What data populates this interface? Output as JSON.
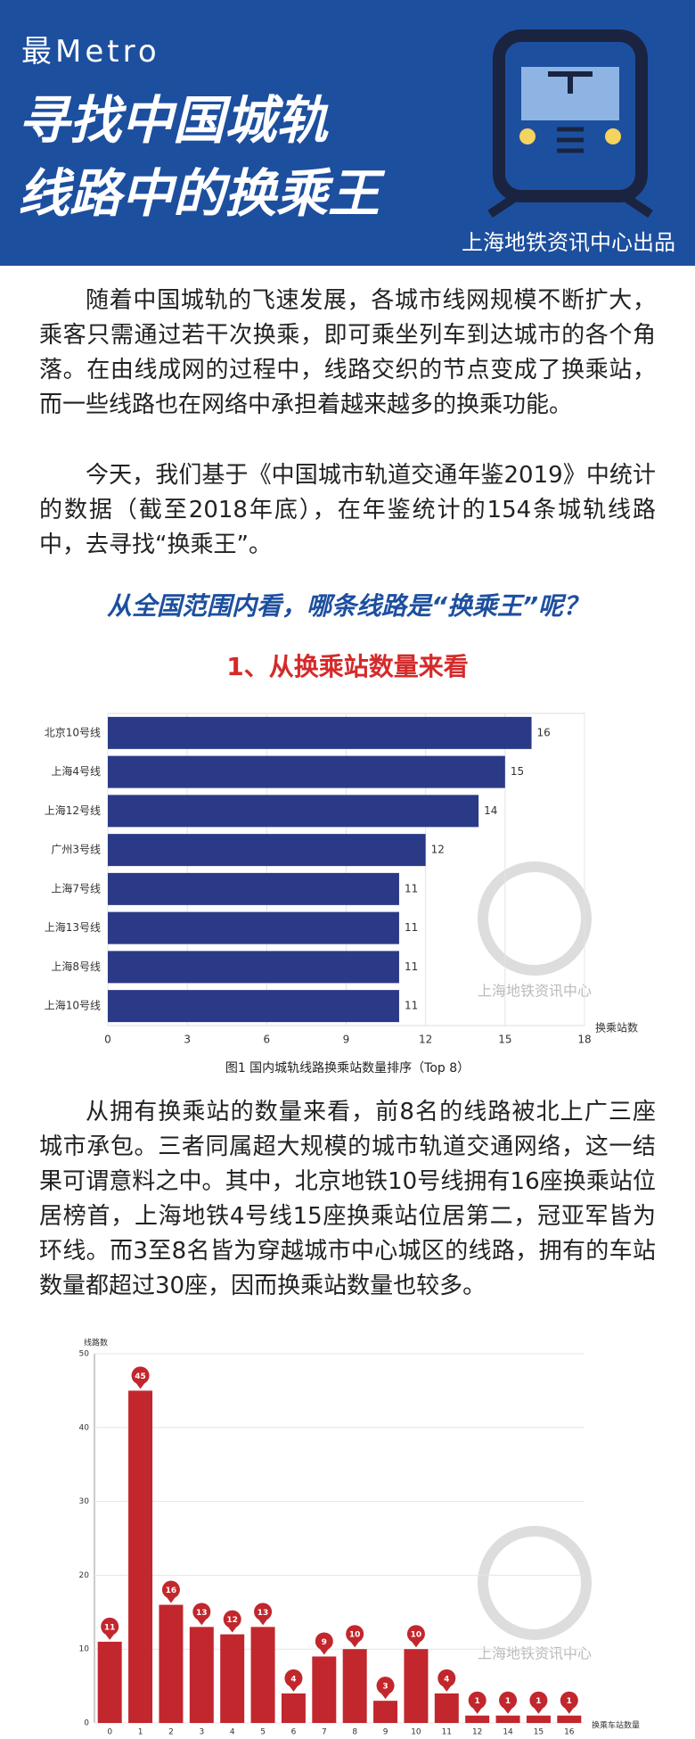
{
  "header": {
    "kicker": "最Metro",
    "title": [
      "寻找中国城轨",
      "线路中的换乘王"
    ],
    "credit": "上海地铁资讯中心出品"
  },
  "intro": [
    "随着中国城轨的飞速发展，各城市线网规模不断扩大，乘客只需通过若干次换乘，即可乘坐列车到达城市的各个角落。在由线成网的过程中，线路交织的节点变成了换乘站，而一些线路也在网络中承担着越来越多的换乘功能。",
    "今天，我们基于《中国城市轨道交通年鉴2019》中统计的数据（截至2018年底），在年鉴统计的154条城轨线路中，去寻找“换乘王”。"
  ],
  "section": {
    "heading": "从全国范围内看，哪条线路是“换乘王”呢？",
    "subheading": "1、从换乘站数量来看"
  },
  "analysis": "从拥有换乘站的数量来看，前8名的线路被北上广三座城市承包。三者同属超大规模的城市轨道交通网络，这一结果可谓意料之中。其中，北京地铁10号线拥有16座换乘站位居榜首，上海地铁4号线15座换乘站位居第二，冠亚军皆为环线。而3至8名皆为穿越城市中心城区的线路，拥有的车站数量都超过30座，因而换乘站数量也较多。",
  "watermark": "上海地铁资讯中心",
  "chart_data": [
    {
      "type": "bar",
      "orientation": "horizontal",
      "categories": [
        "北京10号线",
        "上海4号线",
        "上海12号线",
        "广州3号线",
        "上海7号线",
        "上海13号线",
        "上海8号线",
        "上海10号线"
      ],
      "values": [
        16,
        15,
        14,
        12,
        11,
        11,
        11,
        11
      ],
      "color": "#2b3a87",
      "xlim": [
        0,
        18
      ],
      "xticks": [
        0,
        3,
        6,
        9,
        12,
        15,
        18
      ],
      "xlabel": "换乘站数",
      "grid": true,
      "caption": "图1 国内城轨线路换乘站数量排序（Top 8）"
    },
    {
      "type": "bar",
      "orientation": "vertical",
      "categories": [
        "0",
        "1",
        "2",
        "3",
        "4",
        "5",
        "6",
        "7",
        "8",
        "9",
        "10",
        "11",
        "12",
        "14",
        "15",
        "16"
      ],
      "values": [
        11,
        45,
        16,
        13,
        12,
        13,
        4,
        9,
        10,
        3,
        10,
        4,
        1,
        1,
        1,
        1
      ],
      "color": "#c1272d",
      "ylim": [
        0,
        50
      ],
      "yticks": [
        0,
        10,
        20,
        30,
        40,
        50
      ],
      "ylabel": "线路数",
      "xlabel": "换乘车站数量",
      "grid": true
    }
  ]
}
